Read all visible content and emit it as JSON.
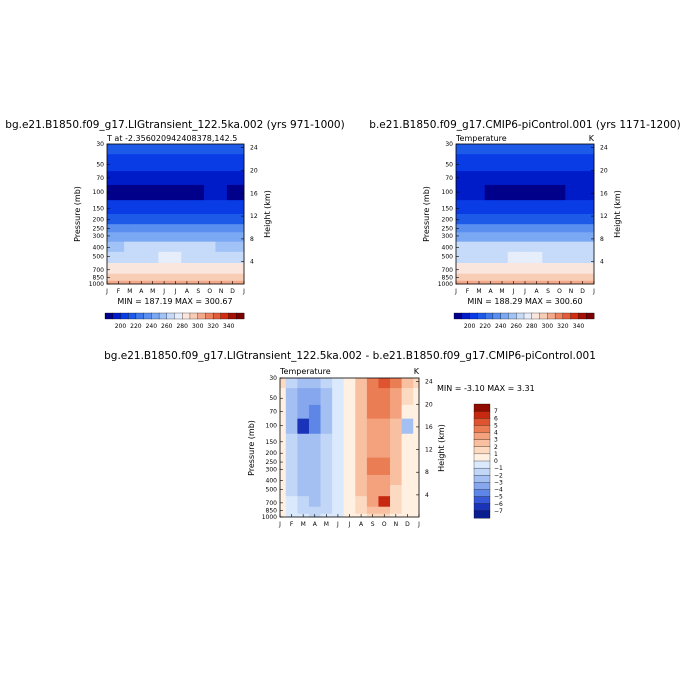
{
  "colors": {
    "blue_scale": [
      "#00008b",
      "#001cc8",
      "#0a3ce6",
      "#1e5ae8",
      "#3d78ec",
      "#5a8ff0",
      "#7ba8f2",
      "#a0c2f6",
      "#c6dbfa",
      "#e6eefc"
    ],
    "red_scale": [
      "#fbe6de",
      "#f8cdb6",
      "#f4a98b",
      "#ee8361",
      "#e55c3a",
      "#d22e12",
      "#a50f05",
      "#7a0101"
    ],
    "diff_neg": [
      "#dbe9fc",
      "#c2d6f7",
      "#a4c0f2",
      "#86a7ed",
      "#5e86e6",
      "#3658d8",
      "#1a33b8",
      "#0a1d8f"
    ],
    "diff_pos": [
      "#fff0e2",
      "#fcdac2",
      "#f8c0a0",
      "#f3a27d",
      "#eb7d55",
      "#de5430",
      "#c6290f",
      "#8f0d00"
    ]
  },
  "panels": [
    {
      "title": "bg.e21.B1850.f09_g17.LIGtransient_122.5ka.002 (yrs 971-1000)",
      "left_label": "T at -2.356020942408378,142.5",
      "right_label": "",
      "y_label": "Pressure (mb)",
      "y2_label": "Height (km)",
      "minmax": "MIN = 187.19 MAX = 300.67"
    },
    {
      "title": "b.e21.B1850.f09_g17.CMIP6-piControl.001 (yrs 1171-1200)",
      "left_label": "Temperature",
      "right_label": "K",
      "y_label": "Pressure (mb)",
      "y2_label": "Height (km)",
      "minmax": "MIN = 188.29 MAX = 300.60"
    },
    {
      "title": "bg.e21.B1850.f09_g17.LIGtransient_122.5ka.002 - b.e21.B1850.f09_g17.CMIP6-piControl.001",
      "left_label": "Temperature",
      "right_label": "K",
      "y_label": "Pressure (mb)",
      "y2_label": "Height (km)",
      "minmax": "MIN =  -3.10 MAX =   3.31"
    }
  ],
  "chart_data": [
    {
      "type": "heatmap",
      "title": "bg.e21.B1850.f09_g17.LIGtransient_122.5ka.002 (yrs 971-1000)",
      "subtitle": "T at -2.356020942408378,142.5",
      "ylabel": "Pressure (mb)",
      "y2label": "Height (km)",
      "x_ticks": [
        "J",
        "F",
        "M",
        "A",
        "M",
        "J",
        "J",
        "A",
        "S",
        "O",
        "N",
        "D",
        "J"
      ],
      "y_ticks": [
        30,
        50,
        70,
        100,
        150,
        200,
        250,
        300,
        400,
        500,
        700,
        850,
        1000
      ],
      "y2_ticks": [
        24,
        20,
        16,
        12,
        8,
        4
      ],
      "colorbar_ticks": [
        200,
        220,
        240,
        260,
        280,
        300,
        320,
        340
      ],
      "min": 187.19,
      "max": 300.67,
      "levels_hpa": [
        30,
        50,
        70,
        100,
        150,
        200,
        250,
        300,
        400,
        500,
        700,
        850,
        1000
      ],
      "months": [
        "J",
        "F",
        "M",
        "A",
        "M",
        "J",
        "J",
        "A",
        "S",
        "O",
        "N",
        "D",
        "J"
      ],
      "values": [
        [
          218,
          217,
          216,
          215,
          213,
          212,
          212,
          213,
          215,
          216,
          217,
          218,
          218
        ],
        [
          207,
          206,
          205,
          204,
          203,
          202,
          202,
          203,
          204,
          206,
          207,
          207,
          207
        ],
        [
          197,
          196,
          195,
          194,
          193,
          192,
          192,
          193,
          194,
          196,
          197,
          197,
          197
        ],
        [
          189,
          189,
          188,
          188,
          188,
          187,
          187,
          188,
          189,
          190,
          190,
          189,
          189
        ],
        [
          201,
          201,
          202,
          202,
          203,
          203,
          203,
          202,
          202,
          201,
          201,
          201,
          201
        ],
        [
          217,
          217,
          218,
          218,
          219,
          219,
          219,
          218,
          218,
          217,
          217,
          217,
          217
        ],
        [
          230,
          230,
          231,
          231,
          231,
          232,
          232,
          231,
          231,
          230,
          230,
          230,
          230
        ],
        [
          241,
          241,
          242,
          242,
          242,
          243,
          243,
          242,
          242,
          241,
          241,
          241,
          241
        ],
        [
          259,
          259,
          260,
          260,
          260,
          261,
          261,
          260,
          260,
          260,
          259,
          259,
          259
        ],
        [
          268,
          268,
          269,
          269,
          269,
          270,
          270,
          269,
          269,
          269,
          268,
          268,
          268
        ],
        [
          283,
          283,
          284,
          284,
          284,
          285,
          285,
          285,
          285,
          284,
          284,
          283,
          283
        ],
        [
          293,
          293,
          294,
          294,
          294,
          295,
          295,
          295,
          295,
          294,
          294,
          293,
          293
        ],
        [
          300,
          300,
          300,
          300,
          300,
          301,
          301,
          301,
          301,
          300,
          300,
          300,
          300
        ]
      ]
    },
    {
      "type": "heatmap",
      "title": "b.e21.B1850.f09_g17.CMIP6-piControl.001 (yrs 1171-1200)",
      "subtitle": "Temperature",
      "ylabel": "Pressure (mb)",
      "y2label": "Height (km)",
      "x_ticks": [
        "J",
        "F",
        "M",
        "A",
        "M",
        "J",
        "J",
        "A",
        "S",
        "O",
        "N",
        "D",
        "J"
      ],
      "y_ticks": [
        30,
        50,
        70,
        100,
        150,
        200,
        250,
        300,
        400,
        500,
        700,
        850,
        1000
      ],
      "y2_ticks": [
        24,
        20,
        16,
        12,
        8,
        4
      ],
      "colorbar_ticks": [
        200,
        220,
        240,
        260,
        280,
        300,
        320,
        340
      ],
      "min": 188.29,
      "max": 300.6,
      "levels_hpa": [
        30,
        50,
        70,
        100,
        150,
        200,
        250,
        300,
        400,
        500,
        700,
        850,
        1000
      ],
      "months": [
        "J",
        "F",
        "M",
        "A",
        "M",
        "J",
        "J",
        "A",
        "S",
        "O",
        "N",
        "D",
        "J"
      ],
      "values": [
        [
          217,
          216,
          215,
          214,
          213,
          212,
          212,
          212,
          213,
          214,
          215,
          216,
          217
        ],
        [
          206,
          205,
          204,
          204,
          203,
          202,
          202,
          202,
          203,
          204,
          205,
          206,
          206
        ],
        [
          196,
          196,
          195,
          194,
          193,
          192,
          192,
          192,
          193,
          194,
          195,
          196,
          196
        ],
        [
          190,
          190,
          190,
          189,
          189,
          188,
          188,
          188,
          189,
          189,
          190,
          190,
          190
        ],
        [
          202,
          202,
          202,
          202,
          202,
          203,
          203,
          203,
          202,
          202,
          202,
          202,
          202
        ],
        [
          218,
          218,
          218,
          218,
          219,
          219,
          219,
          219,
          218,
          218,
          218,
          218,
          218
        ],
        [
          231,
          231,
          231,
          231,
          231,
          232,
          232,
          232,
          231,
          231,
          231,
          231,
          231
        ],
        [
          242,
          242,
          242,
          242,
          242,
          243,
          243,
          243,
          242,
          242,
          242,
          242,
          242
        ],
        [
          260,
          260,
          260,
          260,
          260,
          261,
          261,
          261,
          260,
          260,
          260,
          260,
          260
        ],
        [
          269,
          269,
          269,
          269,
          269,
          270,
          270,
          270,
          269,
          269,
          269,
          269,
          269
        ],
        [
          284,
          284,
          284,
          284,
          284,
          285,
          285,
          285,
          285,
          284,
          284,
          284,
          284
        ],
        [
          294,
          294,
          294,
          294,
          294,
          295,
          295,
          295,
          295,
          294,
          294,
          294,
          294
        ],
        [
          300,
          300,
          300,
          300,
          300,
          300,
          300,
          300,
          300,
          300,
          300,
          300,
          300
        ]
      ]
    },
    {
      "type": "heatmap",
      "title": "bg.e21.B1850.f09_g17.LIGtransient_122.5ka.002 - b.e21.B1850.f09_g17.CMIP6-piControl.001",
      "subtitle": "Temperature",
      "ylabel": "Pressure (mb)",
      "y2label": "Height (km)",
      "x_ticks": [
        "J",
        "F",
        "M",
        "A",
        "M",
        "J",
        "J",
        "A",
        "S",
        "O",
        "N",
        "D",
        "J"
      ],
      "y_ticks": [
        30,
        50,
        70,
        100,
        150,
        200,
        250,
        300,
        400,
        500,
        700,
        850,
        1000
      ],
      "y2_ticks": [
        24,
        20,
        16,
        12,
        8,
        4
      ],
      "colorbar_ticks": [
        7,
        6,
        5,
        4,
        3,
        2,
        1,
        0,
        -1,
        -2,
        -3,
        -4,
        -5,
        -6,
        -7
      ],
      "min": -3.1,
      "max": 3.31,
      "levels_hpa": [
        30,
        50,
        70,
        100,
        150,
        200,
        250,
        300,
        400,
        500,
        700,
        850,
        1000
      ],
      "months": [
        "J",
        "F",
        "M",
        "A",
        "M",
        "J",
        "J",
        "A",
        "S",
        "O",
        "N",
        "D",
        "J"
      ],
      "values": [
        [
          0.5,
          -0.6,
          -1.0,
          -1.3,
          -0.8,
          -0.2,
          0.3,
          1.0,
          2.2,
          2.8,
          2.0,
          1.0,
          0.5
        ],
        [
          0.4,
          -1.2,
          -1.6,
          -1.8,
          -1.0,
          -0.3,
          0.3,
          1.0,
          2.0,
          2.4,
          1.8,
          0.6,
          0.4
        ],
        [
          0.2,
          -1.0,
          -1.8,
          -2.1,
          -1.2,
          -0.3,
          0.3,
          1.1,
          2.0,
          2.1,
          1.5,
          0.0,
          0.2
        ],
        [
          0.0,
          -1.2,
          -3.1,
          -2.0,
          -1.1,
          -0.4,
          0.4,
          1.0,
          1.8,
          1.8,
          1.0,
          -1.0,
          0.0
        ],
        [
          0.2,
          -0.6,
          -1.2,
          -1.4,
          -0.9,
          -0.3,
          0.3,
          1.0,
          1.6,
          1.8,
          1.0,
          0.3,
          0.2
        ],
        [
          0.3,
          -0.5,
          -1.1,
          -1.3,
          -0.8,
          -0.3,
          0.3,
          1.2,
          1.8,
          1.9,
          1.0,
          0.4,
          0.3
        ],
        [
          0.3,
          -0.5,
          -1.1,
          -1.4,
          -0.8,
          -0.3,
          0.3,
          1.3,
          2.0,
          2.0,
          1.1,
          0.4,
          0.3
        ],
        [
          0.3,
          -0.5,
          -1.1,
          -1.3,
          -0.8,
          -0.3,
          0.4,
          1.3,
          2.1,
          2.0,
          1.1,
          0.4,
          0.3
        ],
        [
          0.3,
          -0.5,
          -1.1,
          -1.3,
          -0.8,
          -0.3,
          0.4,
          1.2,
          1.9,
          1.8,
          1.0,
          0.4,
          0.3
        ],
        [
          0.2,
          -0.5,
          -1.2,
          -1.4,
          -0.8,
          -0.3,
          0.3,
          1.0,
          1.6,
          1.6,
          0.9,
          0.3,
          0.2
        ],
        [
          0.1,
          -0.3,
          -0.8,
          -1.2,
          -0.7,
          -0.3,
          0.3,
          0.9,
          1.7,
          3.3,
          0.8,
          0.2,
          0.1
        ],
        [
          0.1,
          -0.3,
          -0.6,
          -0.8,
          -0.5,
          -0.2,
          0.2,
          0.7,
          1.0,
          1.0,
          0.5,
          0.1,
          0.1
        ],
        [
          0.1,
          -0.2,
          -0.4,
          -0.6,
          -0.4,
          -0.2,
          0.1,
          0.4,
          0.6,
          0.6,
          0.3,
          0.1,
          0.1
        ]
      ]
    }
  ]
}
